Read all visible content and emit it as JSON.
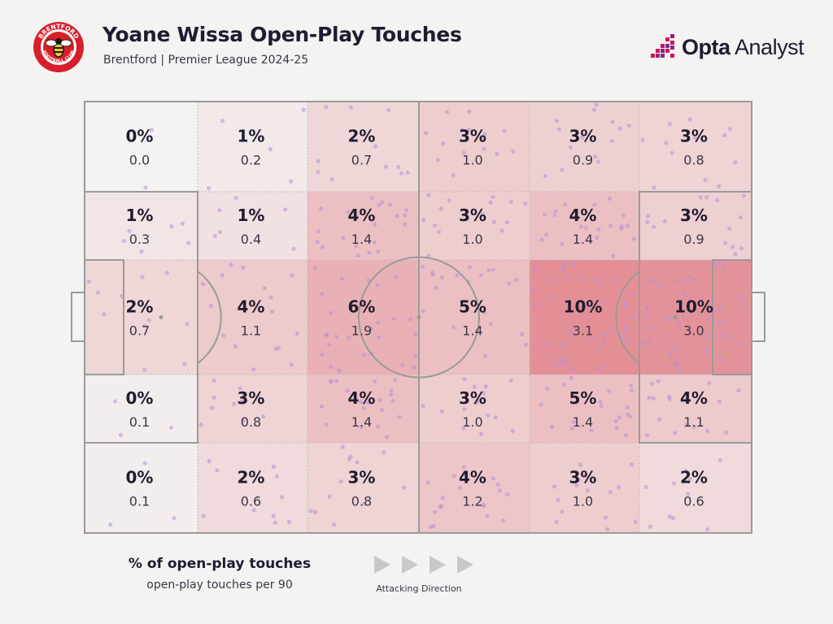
{
  "header": {
    "title": "Yoane Wissa Open-Play Touches",
    "subtitle": "Brentford | Premier League 2024-25",
    "brand_bold": "Opta",
    "brand_light": " Analyst",
    "badge_text_top": "BRENTFORD",
    "badge_text_bottom": "FOOTBALL CLUB"
  },
  "chart_data": {
    "type": "heatmap",
    "title": "Yoane Wissa Open-Play Touches",
    "subtitle": "Brentford | Premier League 2024-25",
    "columns": 6,
    "rows": 5,
    "attacking_direction": "left-to-right",
    "cells": [
      [
        {
          "pct": "0%",
          "p90": "0.0"
        },
        {
          "pct": "1%",
          "p90": "0.2"
        },
        {
          "pct": "2%",
          "p90": "0.7"
        },
        {
          "pct": "3%",
          "p90": "1.0"
        },
        {
          "pct": "3%",
          "p90": "0.9"
        },
        {
          "pct": "3%",
          "p90": "0.8"
        }
      ],
      [
        {
          "pct": "1%",
          "p90": "0.3"
        },
        {
          "pct": "1%",
          "p90": "0.4"
        },
        {
          "pct": "4%",
          "p90": "1.4"
        },
        {
          "pct": "3%",
          "p90": "1.0"
        },
        {
          "pct": "4%",
          "p90": "1.4"
        },
        {
          "pct": "3%",
          "p90": "0.9"
        }
      ],
      [
        {
          "pct": "2%",
          "p90": "0.7"
        },
        {
          "pct": "4%",
          "p90": "1.1"
        },
        {
          "pct": "6%",
          "p90": "1.9"
        },
        {
          "pct": "5%",
          "p90": "1.4"
        },
        {
          "pct": "10%",
          "p90": "3.1"
        },
        {
          "pct": "10%",
          "p90": "3.0"
        }
      ],
      [
        {
          "pct": "0%",
          "p90": "0.1"
        },
        {
          "pct": "3%",
          "p90": "0.8"
        },
        {
          "pct": "4%",
          "p90": "1.4"
        },
        {
          "pct": "3%",
          "p90": "1.0"
        },
        {
          "pct": "5%",
          "p90": "1.4"
        },
        {
          "pct": "4%",
          "p90": "1.1"
        }
      ],
      [
        {
          "pct": "0%",
          "p90": "0.1"
        },
        {
          "pct": "2%",
          "p90": "0.6"
        },
        {
          "pct": "3%",
          "p90": "0.8"
        },
        {
          "pct": "4%",
          "p90": "1.2"
        },
        {
          "pct": "3%",
          "p90": "1.0"
        },
        {
          "pct": "2%",
          "p90": "0.6"
        }
      ]
    ],
    "legend": {
      "primary": "% of open-play touches",
      "secondary": "open-play touches per 90"
    },
    "direction_label": "Attacking Direction"
  },
  "colors": {
    "background": "#f4f3f2",
    "heat_max": "#e48f96",
    "heat_min": "#f4f3f2",
    "touch_dot": "#b88fd6",
    "lines": "#9a9a9a",
    "text": "#1f1c2f",
    "brand_accent": "#d4145a",
    "brand_purple": "#7a2e8c"
  }
}
